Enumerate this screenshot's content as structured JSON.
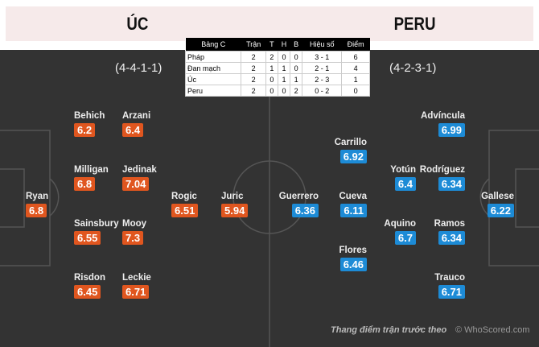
{
  "header": {
    "home": "ÚC",
    "away": "PERU"
  },
  "formations": {
    "home": "(4-4-1-1)",
    "away": "(4-2-3-1)"
  },
  "standings": {
    "headers": [
      "Bảng C",
      "Trận",
      "T",
      "H",
      "B",
      "Hiệu số",
      "Điểm"
    ],
    "rows": [
      [
        "Pháp",
        "2",
        "2",
        "0",
        "0",
        "3 - 1",
        "6"
      ],
      [
        "Đan mạch",
        "2",
        "1",
        "1",
        "0",
        "2 - 1",
        "4"
      ],
      [
        "Úc",
        "2",
        "0",
        "1",
        "1",
        "2 - 3",
        "1"
      ],
      [
        "Peru",
        "2",
        "0",
        "0",
        "2",
        "0 - 2",
        "0"
      ]
    ]
  },
  "home_players": [
    {
      "name": "Ryan",
      "rating": "6.8"
    },
    {
      "name": "Behich",
      "rating": "6.2"
    },
    {
      "name": "Arzani",
      "rating": "6.4"
    },
    {
      "name": "Milligan",
      "rating": "6.8"
    },
    {
      "name": "Jedinak",
      "rating": "7.04"
    },
    {
      "name": "Sainsbury",
      "rating": "6.55"
    },
    {
      "name": "Mooy",
      "rating": "7.3"
    },
    {
      "name": "Risdon",
      "rating": "6.45"
    },
    {
      "name": "Leckie",
      "rating": "6.71"
    },
    {
      "name": "Rogic",
      "rating": "6.51"
    },
    {
      "name": "Juric",
      "rating": "5.94"
    }
  ],
  "away_players": [
    {
      "name": "Advíncula",
      "rating": "6.99"
    },
    {
      "name": "Carrillo",
      "rating": "6.92"
    },
    {
      "name": "Yotún",
      "rating": "6.4"
    },
    {
      "name": "Rodríguez",
      "rating": "6.34"
    },
    {
      "name": "Guerrero",
      "rating": "6.36"
    },
    {
      "name": "Cueva",
      "rating": "6.11"
    },
    {
      "name": "Gallese",
      "rating": "6.22"
    },
    {
      "name": "Aquino",
      "rating": "6.7"
    },
    {
      "name": "Ramos",
      "rating": "6.34"
    },
    {
      "name": "Flores",
      "rating": "6.46"
    },
    {
      "name": "Trauco",
      "rating": "6.71"
    }
  ],
  "colors": {
    "home": "#e0561f",
    "away": "#1d8bd6",
    "pitch": "#333333"
  },
  "footer": {
    "caption": "Thang điểm trận trước theo",
    "credit": "© WhoScored.com"
  }
}
